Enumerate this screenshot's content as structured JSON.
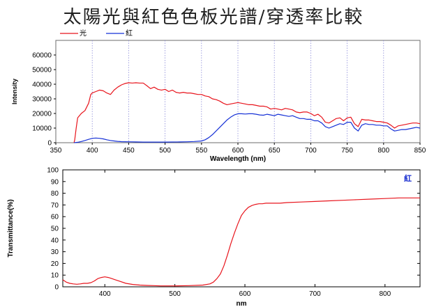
{
  "slide": {
    "title": "太陽光與紅色色板光譜/穿透率比較"
  },
  "chart_data": [
    {
      "type": "line",
      "xlabel": "Wavelength (nm)",
      "ylabel": "Intensity",
      "xlim": [
        350,
        850
      ],
      "ylim": [
        0,
        70000
      ],
      "xticks": [
        350,
        400,
        450,
        500,
        550,
        600,
        650,
        700,
        750,
        800,
        850
      ],
      "yticks": [
        0,
        10000,
        20000,
        30000,
        40000,
        50000,
        60000
      ],
      "grid": "vertical dotted",
      "legend": "top-left",
      "series": [
        {
          "name": "光",
          "color": "#e8141c",
          "x": [
            375,
            376,
            378,
            380,
            385,
            390,
            395,
            398,
            400,
            405,
            410,
            415,
            420,
            425,
            430,
            435,
            440,
            445,
            450,
            455,
            460,
            465,
            470,
            475,
            480,
            485,
            490,
            495,
            500,
            505,
            510,
            515,
            520,
            525,
            530,
            535,
            540,
            545,
            550,
            555,
            560,
            565,
            570,
            575,
            580,
            585,
            590,
            595,
            600,
            605,
            610,
            615,
            620,
            625,
            630,
            635,
            640,
            645,
            650,
            655,
            660,
            665,
            670,
            675,
            680,
            685,
            690,
            695,
            700,
            705,
            710,
            715,
            720,
            725,
            730,
            735,
            740,
            745,
            750,
            755,
            760,
            765,
            770,
            775,
            780,
            785,
            790,
            795,
            800,
            805,
            810,
            815,
            820,
            825,
            830,
            835,
            840,
            845,
            850
          ],
          "y": [
            0,
            2000,
            10000,
            17000,
            20000,
            22000,
            27000,
            33000,
            34000,
            35000,
            36000,
            35500,
            34000,
            33000,
            36000,
            38000,
            39500,
            40500,
            41000,
            40800,
            41000,
            40800,
            40800,
            39000,
            37000,
            38000,
            36500,
            36000,
            36500,
            35000,
            36000,
            34500,
            34000,
            34500,
            34000,
            34000,
            33500,
            33000,
            33000,
            32000,
            31500,
            30000,
            29500,
            28500,
            27000,
            26000,
            26500,
            27000,
            27500,
            27000,
            26500,
            26000,
            26000,
            25500,
            25000,
            25000,
            24500,
            23000,
            23500,
            23000,
            22500,
            23500,
            23000,
            22500,
            21000,
            20500,
            21000,
            21000,
            20000,
            18500,
            19500,
            17500,
            14000,
            13500,
            15000,
            16500,
            17000,
            15000,
            17000,
            17500,
            13000,
            11000,
            16000,
            15500,
            15500,
            15000,
            14500,
            14500,
            14000,
            13500,
            12000,
            10000,
            11500,
            12000,
            12500,
            13000,
            13500,
            13500,
            13000
          ]
        },
        {
          "name": "紅",
          "color": "#1530d6",
          "x": [
            375,
            380,
            385,
            390,
            395,
            400,
            405,
            410,
            415,
            420,
            425,
            430,
            435,
            440,
            450,
            460,
            470,
            480,
            490,
            500,
            510,
            520,
            530,
            540,
            550,
            555,
            560,
            565,
            570,
            575,
            580,
            585,
            590,
            595,
            600,
            605,
            610,
            615,
            620,
            625,
            630,
            635,
            640,
            645,
            650,
            655,
            660,
            665,
            670,
            675,
            680,
            685,
            690,
            695,
            700,
            705,
            710,
            715,
            720,
            725,
            730,
            735,
            740,
            745,
            750,
            755,
            760,
            765,
            770,
            775,
            780,
            785,
            790,
            795,
            800,
            805,
            810,
            815,
            820,
            825,
            830,
            835,
            840,
            845,
            850
          ],
          "y": [
            0,
            300,
            800,
            1500,
            2300,
            3000,
            3200,
            3000,
            2600,
            2000,
            1500,
            1200,
            900,
            700,
            600,
            500,
            450,
            450,
            450,
            450,
            480,
            520,
            600,
            800,
            1200,
            2000,
            3500,
            5500,
            8000,
            10500,
            13000,
            15500,
            17500,
            19000,
            19800,
            19800,
            19600,
            19800,
            19800,
            19500,
            19000,
            18800,
            19500,
            19000,
            18500,
            19500,
            19000,
            18500,
            18000,
            18500,
            17500,
            16500,
            16500,
            16000,
            16000,
            15000,
            15000,
            13500,
            11000,
            10000,
            11000,
            12000,
            13000,
            12500,
            14000,
            14000,
            10000,
            8000,
            12000,
            13000,
            12500,
            12500,
            12000,
            12000,
            11500,
            11500,
            9500,
            8000,
            8500,
            9000,
            9000,
            9500,
            10000,
            10500,
            10000
          ]
        }
      ]
    },
    {
      "type": "line",
      "xlabel": "nm",
      "ylabel": "Transmittance(%)",
      "xlim": [
        340,
        850
      ],
      "ylim": [
        0,
        100
      ],
      "xticks": [
        400,
        500,
        600,
        700,
        800
      ],
      "yticks": [
        0,
        10,
        20,
        30,
        40,
        50,
        60,
        70,
        80,
        90,
        100
      ],
      "grid": "off",
      "legend": "top-right",
      "series": [
        {
          "name": "紅",
          "color": "#e8141c",
          "x": [
            340,
            345,
            350,
            355,
            360,
            365,
            370,
            375,
            380,
            385,
            390,
            395,
            400,
            405,
            410,
            415,
            420,
            430,
            440,
            450,
            460,
            470,
            480,
            500,
            520,
            540,
            550,
            555,
            560,
            565,
            570,
            575,
            580,
            585,
            590,
            595,
            600,
            605,
            610,
            615,
            620,
            625,
            630,
            640,
            650,
            660,
            680,
            700,
            720,
            740,
            760,
            780,
            800,
            820,
            840,
            850
          ],
          "y": [
            6,
            4,
            3,
            2.5,
            2.2,
            2.5,
            3,
            3,
            3.5,
            5,
            7,
            8,
            8.5,
            8,
            7,
            6,
            5,
            3,
            2,
            1.5,
            1.2,
            1,
            0.8,
            0.8,
            1,
            1.5,
            2.5,
            4,
            7,
            11,
            18,
            27,
            37,
            46,
            54,
            61,
            65,
            68,
            69.5,
            70.5,
            71,
            71,
            71.5,
            71.5,
            71.5,
            72,
            72.5,
            73,
            73.5,
            74,
            74.5,
            75,
            75.5,
            76,
            76,
            76
          ]
        }
      ]
    }
  ]
}
